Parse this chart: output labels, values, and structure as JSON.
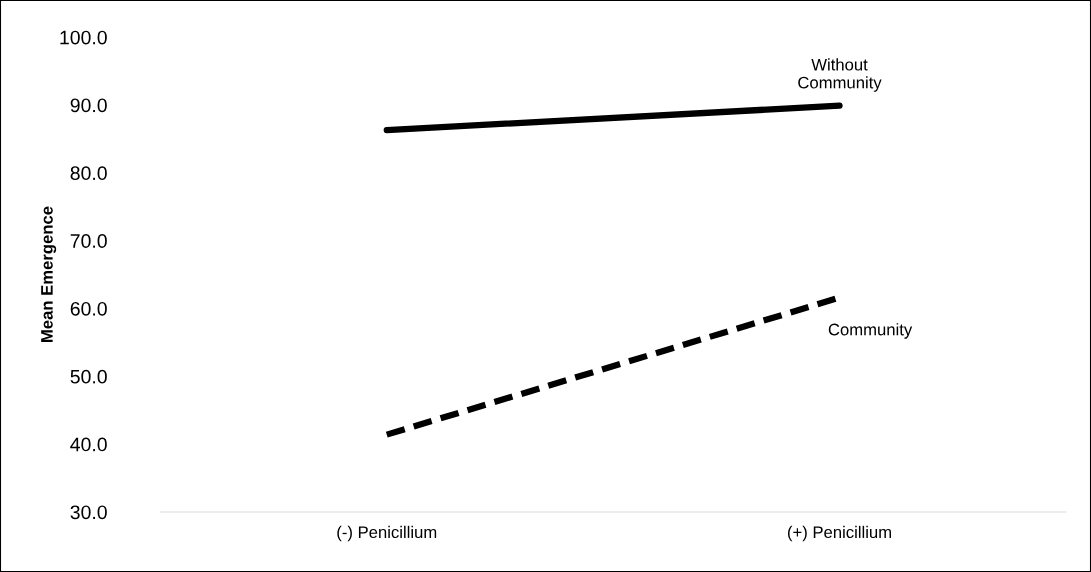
{
  "chart_data": {
    "type": "line",
    "ylabel": "Mean Emergence",
    "categories": [
      "(-) Penicillium",
      "(+) Penicillium"
    ],
    "series": [
      {
        "name": "Without\nCommunity",
        "color": "#000000",
        "values": [
          86.3,
          89.9
        ],
        "line_style": "solid"
      },
      {
        "name": "Community",
        "color": "#000000",
        "values": [
          41.4,
          61.6
        ],
        "line_style": "dashed"
      }
    ],
    "ylim": [
      30,
      100
    ],
    "yticks": [
      {
        "value": 30,
        "label": "30.0"
      },
      {
        "value": 40,
        "label": "40.0"
      },
      {
        "value": 50,
        "label": "50.0"
      },
      {
        "value": 60,
        "label": "60.0"
      },
      {
        "value": 70,
        "label": "70.0"
      },
      {
        "value": 80,
        "label": "80.0"
      },
      {
        "value": 90,
        "label": "90.0"
      },
      {
        "value": 100,
        "label": "100.0"
      }
    ],
    "grid": false,
    "legend": false,
    "marker": "none"
  }
}
